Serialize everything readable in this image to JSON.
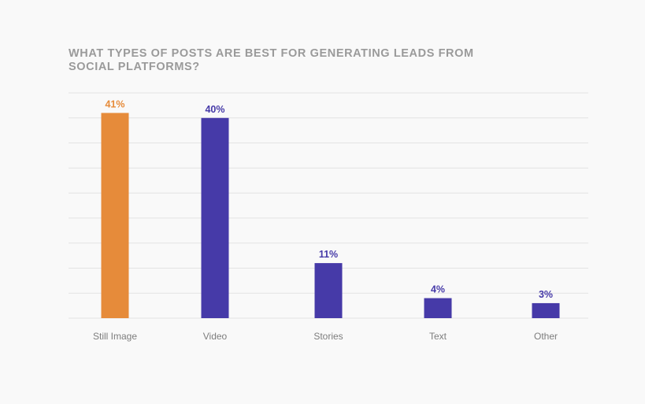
{
  "chart_data": {
    "type": "bar",
    "title": "WHAT TYPES OF POSTS ARE BEST FOR GENERATING LEADS FROM SOCIAL PLATFORMS?",
    "categories": [
      "Still Image",
      "Video",
      "Stories",
      "Text",
      "Other"
    ],
    "values": [
      41,
      40,
      11,
      4,
      3
    ],
    "value_labels": [
      "41%",
      "40%",
      "11%",
      "4%",
      "3%"
    ],
    "unit": "%",
    "ylim": [
      0,
      45
    ],
    "grid": true,
    "legend": "none",
    "bar_colors": [
      "#e68b3a",
      "#463aa8",
      "#463aa8",
      "#463aa8",
      "#463aa8"
    ]
  }
}
